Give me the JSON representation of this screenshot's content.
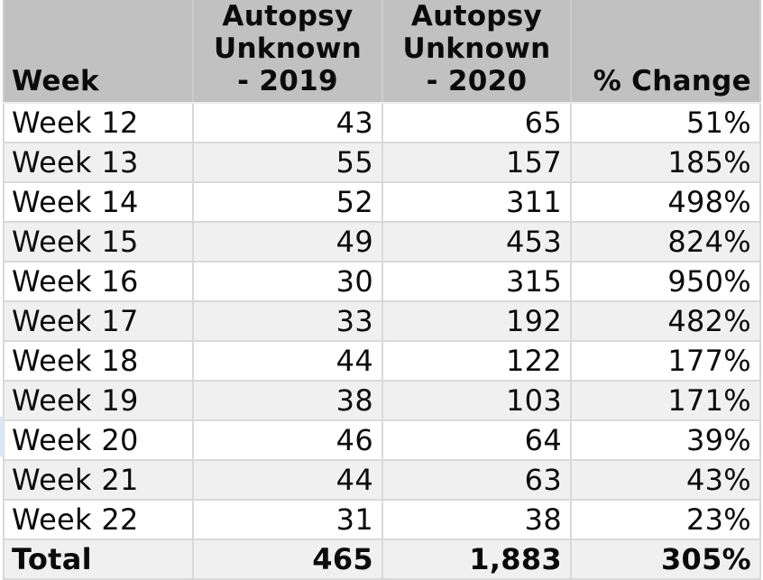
{
  "title": "Autopsy Unknown weekly comparison table",
  "colors": {
    "header_bg": "#c1c1c1",
    "stripe_bg": "#f0f0f0",
    "grid": "#d9d9d9",
    "selection_edge": "#d9e7f5",
    "text": "#0b0b0b"
  },
  "chart_data": {
    "type": "table",
    "columns": [
      "Week",
      "Autopsy Unknown - 2019",
      "Autopsy Unknown - 2020",
      "% Change"
    ],
    "rows": [
      [
        "Week 12",
        "43",
        "65",
        "51%"
      ],
      [
        "Week 13",
        "55",
        "157",
        "185%"
      ],
      [
        "Week 14",
        "52",
        "311",
        "498%"
      ],
      [
        "Week 15",
        "49",
        "453",
        "824%"
      ],
      [
        "Week 16",
        "30",
        "315",
        "950%"
      ],
      [
        "Week 17",
        "33",
        "192",
        "482%"
      ],
      [
        "Week 18",
        "44",
        "122",
        "177%"
      ],
      [
        "Week 19",
        "38",
        "103",
        "171%"
      ],
      [
        "Week 20",
        "46",
        "64",
        "39%"
      ],
      [
        "Week 21",
        "44",
        "63",
        "43%"
      ],
      [
        "Week 22",
        "31",
        "38",
        "23%"
      ]
    ],
    "total_row": [
      "Total",
      "465",
      "1,883",
      "305%"
    ],
    "series": [
      {
        "name": "Autopsy Unknown - 2019",
        "values": [
          43,
          55,
          52,
          49,
          30,
          33,
          44,
          38,
          46,
          44,
          31
        ],
        "total": 465
      },
      {
        "name": "Autopsy Unknown - 2020",
        "values": [
          65,
          157,
          311,
          453,
          315,
          192,
          122,
          103,
          64,
          63,
          38
        ],
        "total": 1883
      },
      {
        "name": "% Change",
        "values": [
          51,
          185,
          498,
          824,
          950,
          482,
          177,
          171,
          39,
          43,
          23
        ],
        "total": 305
      }
    ],
    "categories": [
      "Week 12",
      "Week 13",
      "Week 14",
      "Week 15",
      "Week 16",
      "Week 17",
      "Week 18",
      "Week 19",
      "Week 20",
      "Week 21",
      "Week 22"
    ]
  }
}
